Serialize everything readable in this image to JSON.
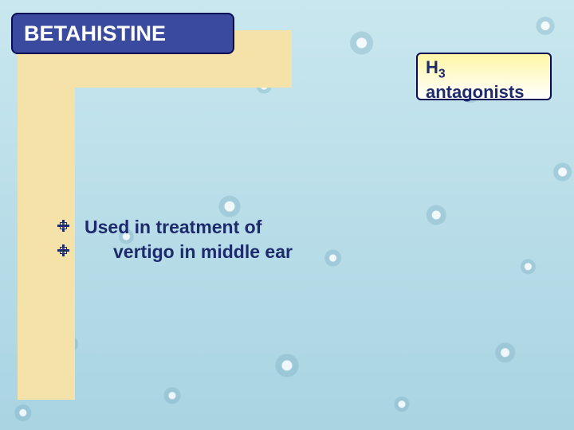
{
  "background": {
    "base_color": "#b8dde8",
    "gradient_top": "#c9e7ef",
    "gradient_bottom": "#a9d4e2"
  },
  "l_shape": {
    "color": "#f5e2a8"
  },
  "title_box": {
    "text": "BETAHISTINE",
    "text_color": "#ffffff",
    "fill_color": "#3a4a9e",
    "border_color": "#0b0b55",
    "font_size_pt": 20,
    "font_weight": 700
  },
  "tag_box": {
    "line1_prefix": "H",
    "line1_sub": "3",
    "line2": "antagonists",
    "text_color": "#1d2a6b",
    "border_color": "#0b0b55",
    "fill_gradient_top": "#fff6a6",
    "fill_gradient_bottom": "#ffffff",
    "font_size_pt": 17,
    "font_weight": 700
  },
  "bullets": {
    "text_color": "#1d2a6b",
    "icon_color": "#1d2a6b",
    "font_size_pt": 17,
    "font_weight": 700,
    "items": [
      {
        "text": "Used in treatment of",
        "indent": 0
      },
      {
        "text": "vertigo in middle ear",
        "indent": 1
      }
    ]
  }
}
